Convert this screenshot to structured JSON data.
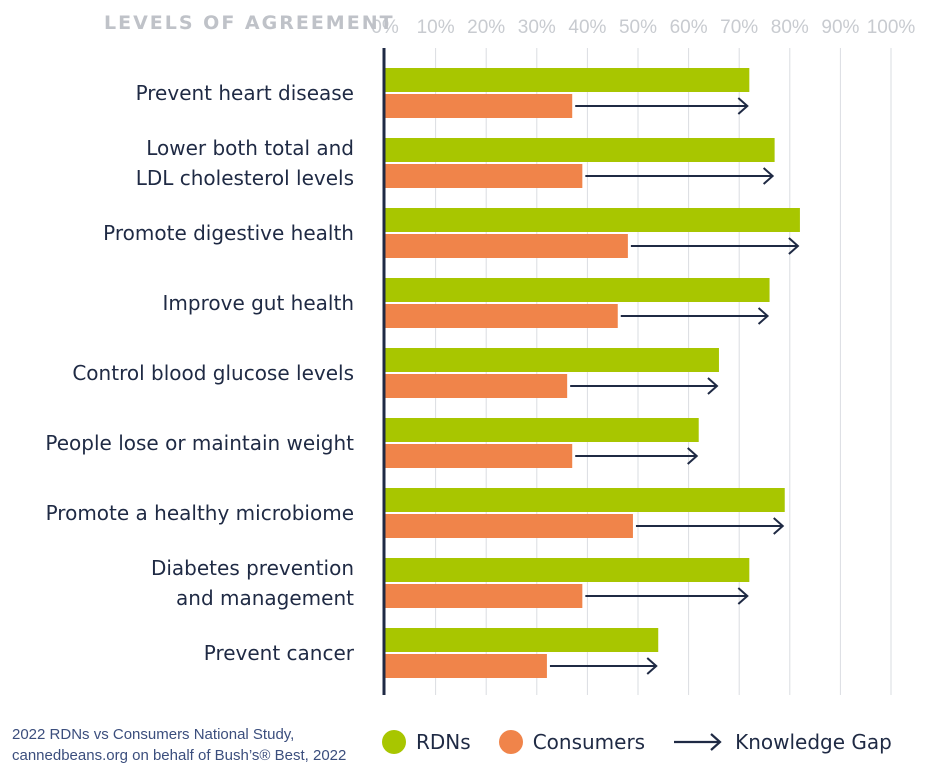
{
  "chart_data": {
    "type": "bar",
    "orientation": "horizontal",
    "title": "",
    "axis_title": "LEVELS OF AGREEMENT",
    "xlim": [
      0,
      100
    ],
    "ticks": [
      "0%",
      "10%",
      "20%",
      "30%",
      "40%",
      "50%",
      "60%",
      "70%",
      "80%",
      "90%",
      "100%"
    ],
    "grid": true,
    "categories": [
      "Prevent heart disease",
      "Lower both total and\nLDL cholesterol levels",
      "Promote digestive health",
      "Improve gut health",
      "Control blood glucose levels",
      "People lose or maintain weight",
      "Promote a healthy microbiome",
      "Diabetes prevention\nand management",
      "Prevent cancer"
    ],
    "series": [
      {
        "name": "RDNs",
        "color": "#a8c600",
        "values": [
          72,
          77,
          82,
          76,
          66,
          62,
          79,
          72,
          54
        ]
      },
      {
        "name": "Consumers",
        "color": "#f0844a",
        "values": [
          37,
          39,
          48,
          46,
          36,
          37,
          49,
          39,
          32
        ]
      }
    ],
    "gap_label": "Knowledge Gap",
    "arrow_color": "#1f2a44",
    "legend_position": "bottom"
  },
  "source_lines": [
    "2022 RDNs vs Consumers National Study,",
    "cannedbeans.org on behalf of Bush’s® Best, 2022"
  ]
}
